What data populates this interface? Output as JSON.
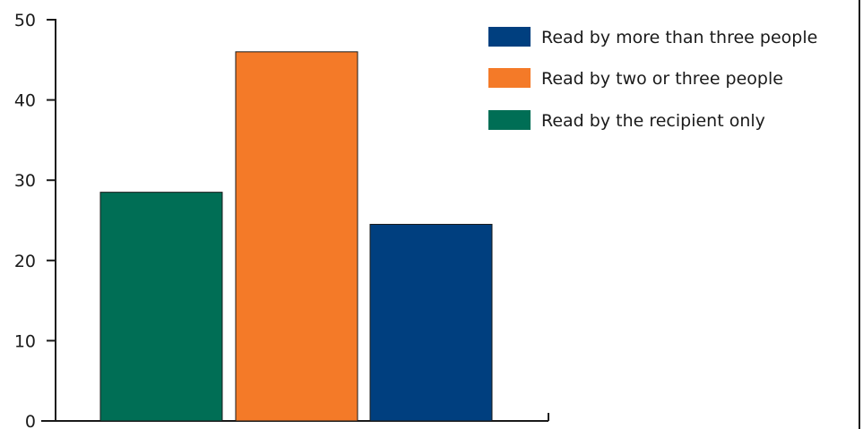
{
  "chart_data": {
    "type": "bar",
    "categories": [
      "Read by the recipient only",
      "Read by two or three people",
      "Read by more than three people"
    ],
    "values": [
      28.5,
      46,
      24.5
    ],
    "colors": [
      "#006e55",
      "#f47a28",
      "#003f7f"
    ],
    "ylim": [
      0,
      50
    ],
    "yticks": [
      "0",
      "10",
      "20",
      "30",
      "40",
      "50"
    ],
    "legend": {
      "placement": "top-right",
      "entries": [
        {
          "label": "Read by more than three people",
          "color": "#003f7f"
        },
        {
          "label": "Read by two or three people",
          "color": "#f47a28"
        },
        {
          "label": "Read by the recipient only",
          "color": "#006e55"
        }
      ]
    },
    "grid": false
  }
}
